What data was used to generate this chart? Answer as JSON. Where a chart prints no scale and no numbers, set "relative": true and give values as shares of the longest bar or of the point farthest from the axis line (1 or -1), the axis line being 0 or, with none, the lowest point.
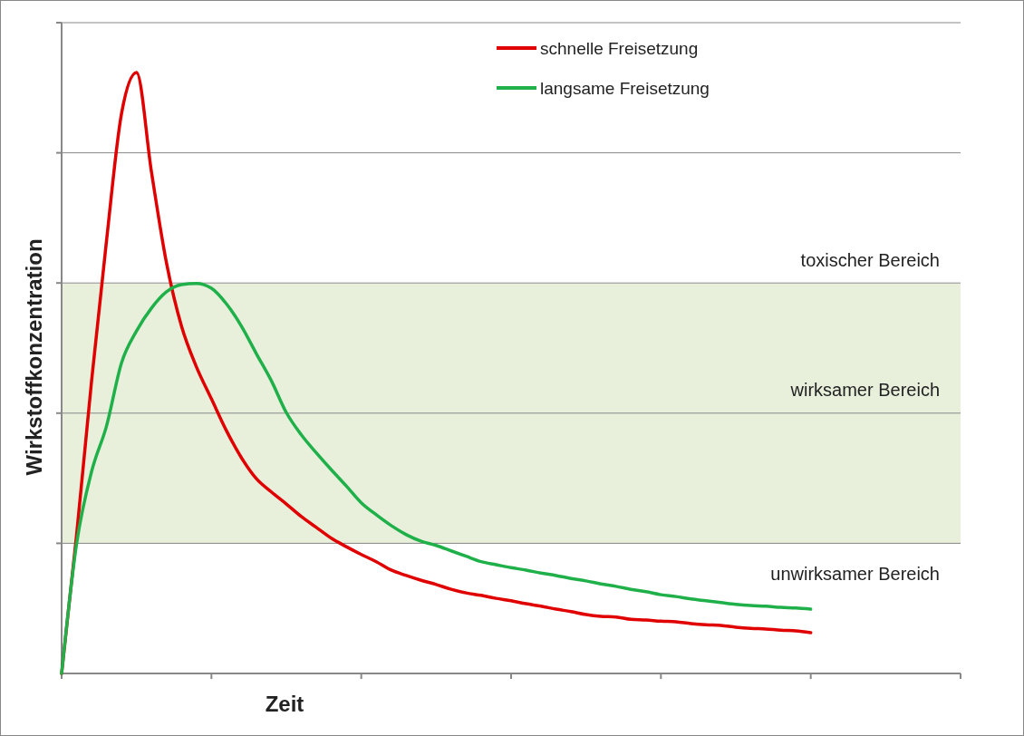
{
  "chart_data": {
    "type": "line",
    "relative": true,
    "xlabel": "Zeit",
    "ylabel": "Wirkstoffkonzentration",
    "grid": "y",
    "legend": "top",
    "categories": [
      null,
      null,
      null,
      null,
      null,
      null,
      null,
      null,
      null,
      null,
      null,
      null,
      null,
      null,
      null,
      null,
      null,
      null,
      null,
      null,
      null,
      null,
      null,
      null,
      null,
      null,
      null,
      null,
      null,
      null,
      null,
      null,
      null,
      null,
      null,
      null,
      null,
      null,
      null,
      null,
      null,
      null,
      null,
      null,
      null,
      null,
      null,
      null,
      null,
      null,
      null,
      null,
      null,
      null,
      null,
      null,
      null,
      null,
      null,
      null,
      null
    ],
    "series": [
      {
        "name": "schnelle Freisetzung",
        "color": "#e00000",
        "values": [
          0,
          0.231,
          0.487,
          0.721,
          0.932,
          1,
          0.834,
          0.683,
          0.578,
          0.51,
          0.457,
          0.404,
          0.359,
          0.324,
          0.302,
          0.282,
          0.261,
          0.243,
          0.225,
          0.211,
          0.198,
          0.186,
          0.172,
          0.163,
          0.155,
          0.148,
          0.14,
          0.134,
          0.13,
          0.125,
          0.121,
          0.116,
          0.112,
          0.107,
          0.103,
          0.098,
          0.095,
          0.094,
          0.09,
          0.089,
          0.087,
          0.086,
          0.083,
          0.081,
          0.08,
          0.077,
          0.075,
          0.074,
          0.072,
          0.071,
          0.068,
          null,
          null,
          null,
          null,
          null,
          null,
          null,
          null,
          null,
          null
        ]
      },
      {
        "name": "langsame Freisetzung",
        "color": "#1fb04a",
        "values": [
          0,
          0.216,
          0.336,
          0.412,
          0.517,
          0.57,
          0.608,
          0.635,
          0.647,
          0.649,
          0.641,
          0.615,
          0.578,
          0.532,
          0.487,
          0.434,
          0.397,
          0.367,
          0.339,
          0.312,
          0.284,
          0.264,
          0.246,
          0.231,
          0.22,
          0.213,
          0.204,
          0.195,
          0.186,
          0.181,
          0.176,
          0.172,
          0.167,
          0.163,
          0.158,
          0.154,
          0.149,
          0.145,
          0.14,
          0.136,
          0.131,
          0.128,
          0.124,
          0.121,
          0.118,
          0.115,
          0.113,
          0.112,
          0.11,
          0.109,
          0.107,
          null,
          null,
          null,
          null,
          null,
          null,
          null,
          null,
          null,
          null
        ]
      }
    ],
    "bands": [
      {
        "axis": "y",
        "from": 0.216,
        "to": 0.649,
        "label": "wirksamer Bereich",
        "color": "#e8f0dc"
      }
    ],
    "annotations": [
      "toxischer Bereich",
      "unwirksamer Bereich"
    ]
  }
}
